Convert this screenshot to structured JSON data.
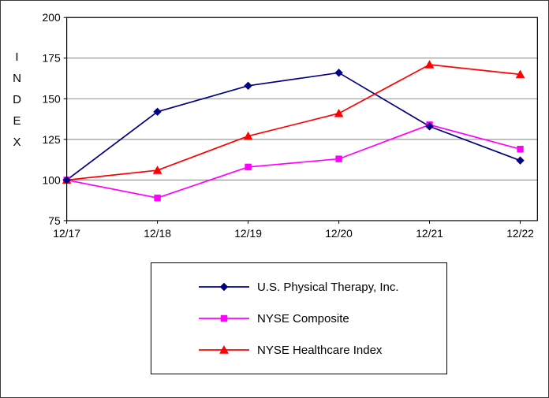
{
  "chart_data": {
    "type": "line",
    "title": "",
    "ylabel": "INDEX",
    "x": [
      "12/17",
      "12/18",
      "12/19",
      "12/20",
      "12/21",
      "12/22"
    ],
    "ylim": [
      75,
      200
    ],
    "yticks": [
      75,
      100,
      125,
      150,
      175,
      200
    ],
    "grid": true,
    "legend_position": "bottom",
    "series": [
      {
        "name": "U.S. Physical Therapy, Inc.",
        "marker": "diamond",
        "color": "#000080",
        "values": [
          100,
          142,
          158,
          166,
          133,
          112
        ]
      },
      {
        "name": "NYSE Composite",
        "marker": "square",
        "color": "#FF00FF",
        "values": [
          100,
          89,
          108,
          113,
          134,
          119
        ]
      },
      {
        "name": "NYSE Healthcare Index",
        "marker": "triangle",
        "color": "#FF0000",
        "values": [
          100,
          106,
          127,
          141,
          171,
          165
        ]
      }
    ],
    "colors": {
      "grid": "#808080",
      "axis": "#000000",
      "background": "#FFFFFF"
    }
  }
}
